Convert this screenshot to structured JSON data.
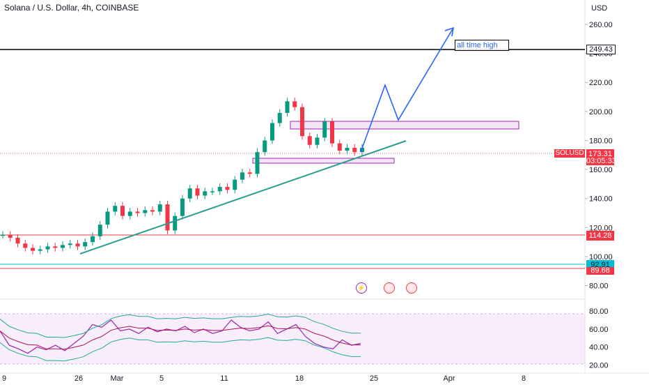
{
  "header": {
    "title": "Solana / U.S. Dollar, 4h, COINBASE",
    "currency": "USD"
  },
  "chart_data": [
    {
      "type": "line",
      "title": "Solana / U.S. Dollar, 4h, COINBASE",
      "symbol": "SOLUSD",
      "x_ticks": [
        "9",
        "26",
        "Mar",
        "5",
        "11",
        "18",
        "25",
        "Apr",
        "8"
      ],
      "y_ticks": [
        "80.00",
        "100.00",
        "120.00",
        "140.00",
        "160.00",
        "180.00",
        "200.00",
        "220.00",
        "240.00",
        "260.00"
      ],
      "ylim": [
        75,
        272
      ],
      "candle_color_up": "#089981",
      "candle_color_down": "#f23645",
      "series": [
        {
          "values": [
            115,
            113,
            109,
            106,
            104,
            105,
            107,
            106,
            108,
            109,
            107,
            110,
            114,
            122,
            131,
            135,
            128,
            131,
            130,
            132,
            131,
            136,
            118,
            128,
            140,
            147,
            142,
            145,
            145,
            148,
            146,
            153,
            158,
            157,
            172,
            180,
            192,
            199,
            207,
            203,
            183,
            177,
            182,
            193,
            178,
            173,
            175,
            172,
            175
          ]
        }
      ],
      "annotations": {
        "all_time_high_label": "all time high",
        "all_time_high_price": "249.43",
        "current_price": "173.31",
        "countdown": "03:05:33",
        "level_red_1": "114.28",
        "level_cyan": "92.91",
        "level_red_2": "89.68",
        "colors": {
          "support": "#2a9d8f",
          "projection": "#2962ff",
          "zone": "#9c27b0",
          "level_red": "#f23645",
          "level_cyan": "#00bcd4"
        }
      }
    },
    {
      "type": "line",
      "title": "",
      "y_ticks": [
        "20.00",
        "40.00",
        "60.00",
        "80.00"
      ],
      "ylim": [
        15,
        87
      ],
      "band": [
        30,
        70
      ],
      "series": [
        {
          "values": [
            58,
            42,
            38,
            33,
            40,
            37,
            42,
            36,
            44,
            52,
            65,
            62,
            70,
            58,
            60,
            55,
            62,
            57,
            60,
            58,
            63,
            56,
            60,
            55,
            58,
            70,
            62,
            58,
            60,
            68,
            55,
            60,
            65,
            52,
            44,
            40,
            38,
            48,
            42,
            44
          ]
        }
      ]
    }
  ]
}
